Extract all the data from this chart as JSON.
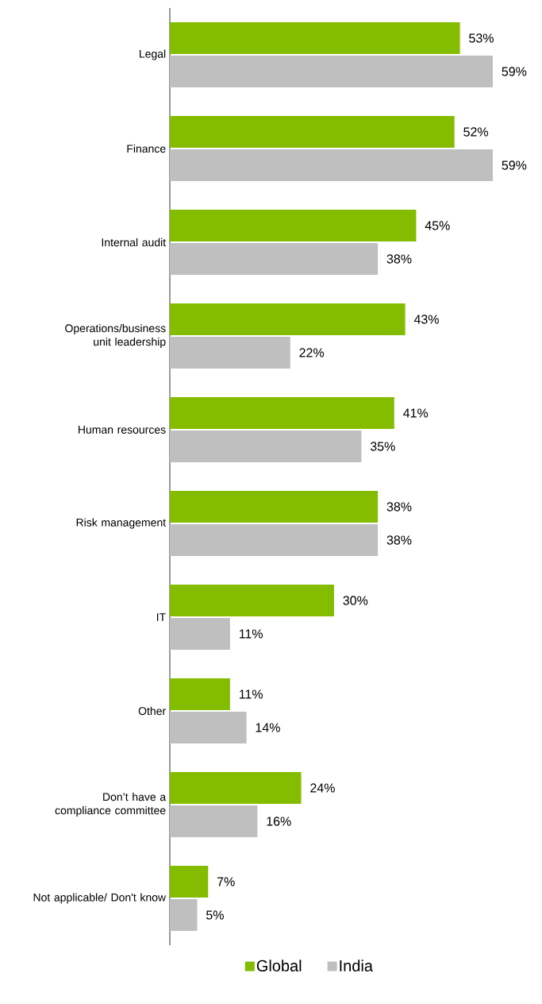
{
  "chart_data": {
    "type": "bar",
    "orientation": "horizontal",
    "legend": "bottom",
    "categories": [
      "Legal",
      "Finance",
      "Internal audit",
      "Operations/business unit leadership",
      "Human resources",
      "Risk management",
      "IT",
      "Other",
      "Don’t have a compliance committee",
      "Not applicable/ Don't know"
    ],
    "series": [
      {
        "name": "Global",
        "color": "#84bd00",
        "values": [
          53,
          52,
          45,
          43,
          41,
          38,
          30,
          11,
          24,
          7
        ],
        "value_labels": [
          "53%",
          "52%",
          "45%",
          "43%",
          "41%",
          "38%",
          "30%",
          "11%",
          "24%",
          "7%"
        ]
      },
      {
        "name": "India",
        "color": "#bfbfbf",
        "values": [
          59,
          59,
          38,
          22,
          35,
          38,
          11,
          14,
          16,
          5
        ],
        "value_labels": [
          "59%",
          "59%",
          "38%",
          "22%",
          "35%",
          "38%",
          "11%",
          "14%",
          "16%",
          "5%"
        ]
      }
    ]
  }
}
